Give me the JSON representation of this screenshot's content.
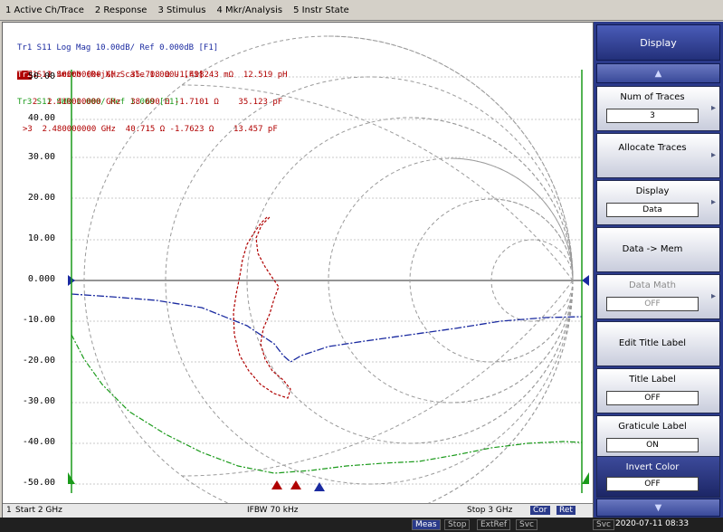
{
  "menubar": [
    "1 Active Ch/Trace",
    "2 Response",
    "3 Stimulus",
    "4 Mkr/Analysis",
    "5 Instr State"
  ],
  "legend": {
    "tr1": "Tr1 S11 Log Mag 10.00dB/ Ref 0.000dB [F1]",
    "tr2_badge": "Tr2",
    "tr2": "S11 Smith (R+jX) Scale 1.000U [F1]",
    "tr3": "Tr3 S11 SWR 1.000/ Ref 1.000 [F1]"
  },
  "markers": [
    "  1  2.400000000 GHz  35.708 Ω -1.498243 mΩ  12.519 pH",
    "  2  2.410000000 GHz  38.690 Ω -1.7101 Ω    35.123 pF",
    ">3  2.480000000 GHz  40.715 Ω -1.7623 Ω    13.457 pF"
  ],
  "y_ticks": [
    "50.00",
    "40.00",
    "30.00",
    "20.00",
    "10.00",
    "0.000",
    "-10.00",
    "-20.00",
    "-30.00",
    "-40.00",
    "-50.00"
  ],
  "bottom": {
    "channel": "1",
    "start": "Start 2 GHz",
    "ifbw": "IFBW 70 kHz",
    "stop": "Stop 3 GHz",
    "badge_c": "Cor",
    "badge_r": "Ret"
  },
  "softkeys": {
    "title": "Display",
    "up": "▲",
    "down": "▼",
    "num_traces_label": "Num of Traces",
    "num_traces_value": "3",
    "allocate_label": "Allocate Traces",
    "display_label": "Display",
    "display_value": "Data",
    "data_mem_label": "Data -> Mem",
    "data_math_label": "Data Math",
    "data_math_value": "OFF",
    "edit_title_label": "Edit Title Label",
    "title_label_label": "Title Label",
    "title_label_value": "OFF",
    "graticule_label": "Graticule Label",
    "graticule_value": "ON",
    "invert_label": "Invert Color",
    "invert_value": "OFF"
  },
  "statusbar": {
    "meas": "Meas",
    "stop": "Stop",
    "extref": "ExtRef",
    "svc1": "Svc",
    "svc2": "Svc",
    "datetime": "2020-07-11 08:33"
  },
  "colors": {
    "tr1": "#1a2aa0",
    "tr2": "#b00000",
    "tr3": "#1a9a1a",
    "grid": "#b8b8b8",
    "softkey_bg": "#2b3a8a"
  }
}
